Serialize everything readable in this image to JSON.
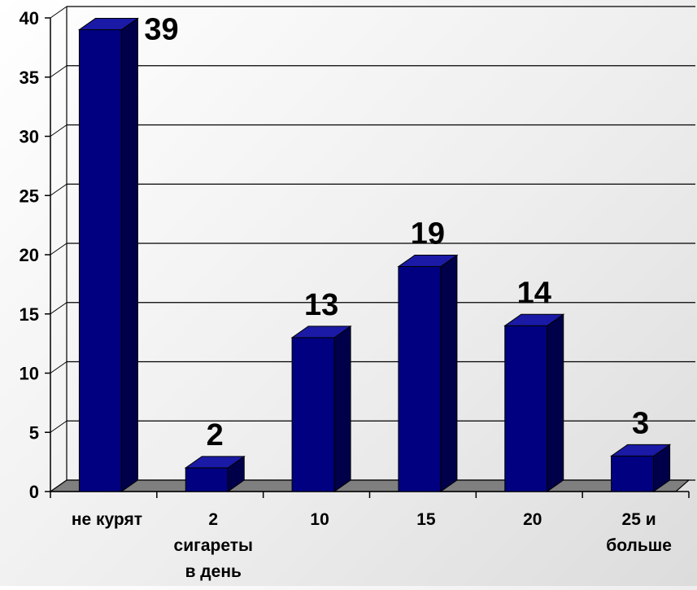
{
  "chart_data": {
    "type": "bar",
    "categories": [
      [
        "не курят"
      ],
      [
        "2",
        "сигареты",
        "в день"
      ],
      [
        "10"
      ],
      [
        "15"
      ],
      [
        "20"
      ],
      [
        "25 и",
        "больше"
      ]
    ],
    "values": [
      39,
      2,
      13,
      19,
      14,
      3
    ],
    "data_labels": [
      "39",
      "2",
      "13",
      "19",
      "14",
      "3"
    ],
    "title": "",
    "xlabel": "",
    "ylabel": "",
    "ylim": [
      0,
      40
    ],
    "yticks": [
      0,
      5,
      10,
      15,
      20,
      25,
      30,
      35,
      40
    ],
    "grid": true,
    "legend": "none",
    "style": "3d-column",
    "colors": {
      "bar_front": "#000080",
      "bar_side": "#00004a",
      "bar_top": "#1a1aa6",
      "floor": "#7f7f7f",
      "wall_grid": "#000000"
    }
  }
}
